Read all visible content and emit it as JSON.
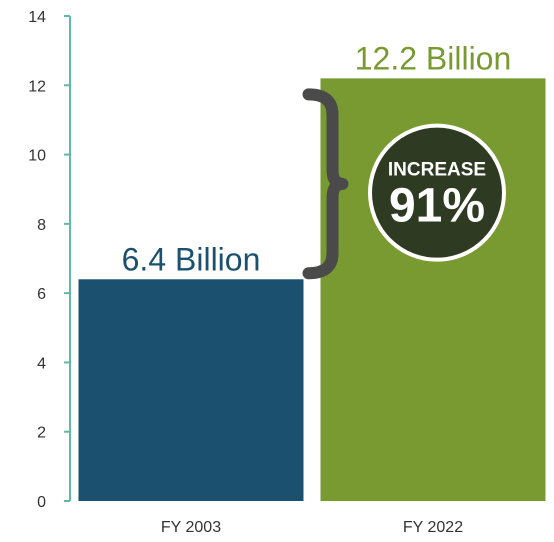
{
  "chart_data": {
    "type": "bar",
    "categories": [
      "FY 2003",
      "FY 2022"
    ],
    "values": [
      6.4,
      12.2
    ],
    "value_labels": [
      "6.4 Billion",
      "12.2 Billion"
    ],
    "colors": [
      "#1b506f",
      "#789a30"
    ],
    "yticks": [
      "0",
      "2",
      "4",
      "6",
      "8",
      "10",
      "12",
      "14"
    ],
    "ylim": [
      0,
      14
    ],
    "grid": false,
    "axis_color": "#5fb8a8",
    "annotation": {
      "label": "INCREASE",
      "value": "91%",
      "fill": "#2e3b22",
      "bracket_color": "#4a4a4a"
    }
  }
}
